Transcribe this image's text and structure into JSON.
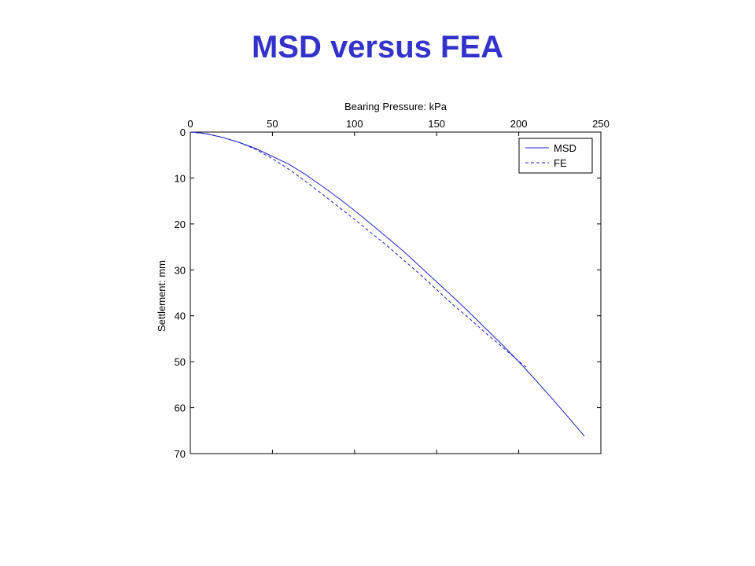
{
  "page": {
    "title": "MSD versus FEA"
  },
  "chart_data": {
    "type": "line",
    "title": "",
    "xlabel": "Bearing Pressure: kPa",
    "ylabel": "Settlement: mm",
    "x_axis_position": "top",
    "y_axis_inverted": true,
    "xlim": [
      0,
      250
    ],
    "ylim": [
      0,
      70
    ],
    "x_ticks": [
      0,
      50,
      100,
      150,
      200,
      250
    ],
    "y_ticks": [
      0,
      10,
      20,
      30,
      40,
      50,
      60,
      70
    ],
    "grid": false,
    "legend_position": "top-right",
    "line_color": "#1f1fcc",
    "series": [
      {
        "name": "MSD",
        "line_style": "solid",
        "x": [
          0,
          5,
          10,
          20,
          30,
          40,
          50,
          60,
          70,
          80,
          90,
          100,
          110,
          120,
          130,
          140,
          150,
          160,
          170,
          180,
          190,
          200,
          210,
          220,
          230,
          240
        ],
        "y": [
          0,
          0.1,
          0.4,
          1.2,
          2.3,
          3.6,
          5.3,
          7.0,
          9.2,
          11.7,
          14.3,
          17.1,
          20.0,
          23.0,
          26.0,
          29.3,
          32.6,
          35.9,
          39.3,
          42.8,
          46.3,
          50.0,
          53.9,
          57.9,
          62.0,
          66.2
        ]
      },
      {
        "name": "FE",
        "line_style": "dashed",
        "x": [
          0,
          10,
          20,
          30,
          40,
          50,
          60,
          70,
          80,
          90,
          100,
          110,
          120,
          130,
          140,
          150,
          160,
          170,
          180,
          190,
          200,
          205
        ],
        "y": [
          0,
          0.4,
          1.2,
          2.3,
          3.8,
          5.8,
          8.1,
          10.7,
          13.4,
          16.2,
          19.0,
          21.9,
          24.8,
          27.9,
          31.0,
          34.3,
          37.6,
          40.6,
          43.8,
          46.8,
          49.9,
          51.3
        ]
      }
    ]
  }
}
